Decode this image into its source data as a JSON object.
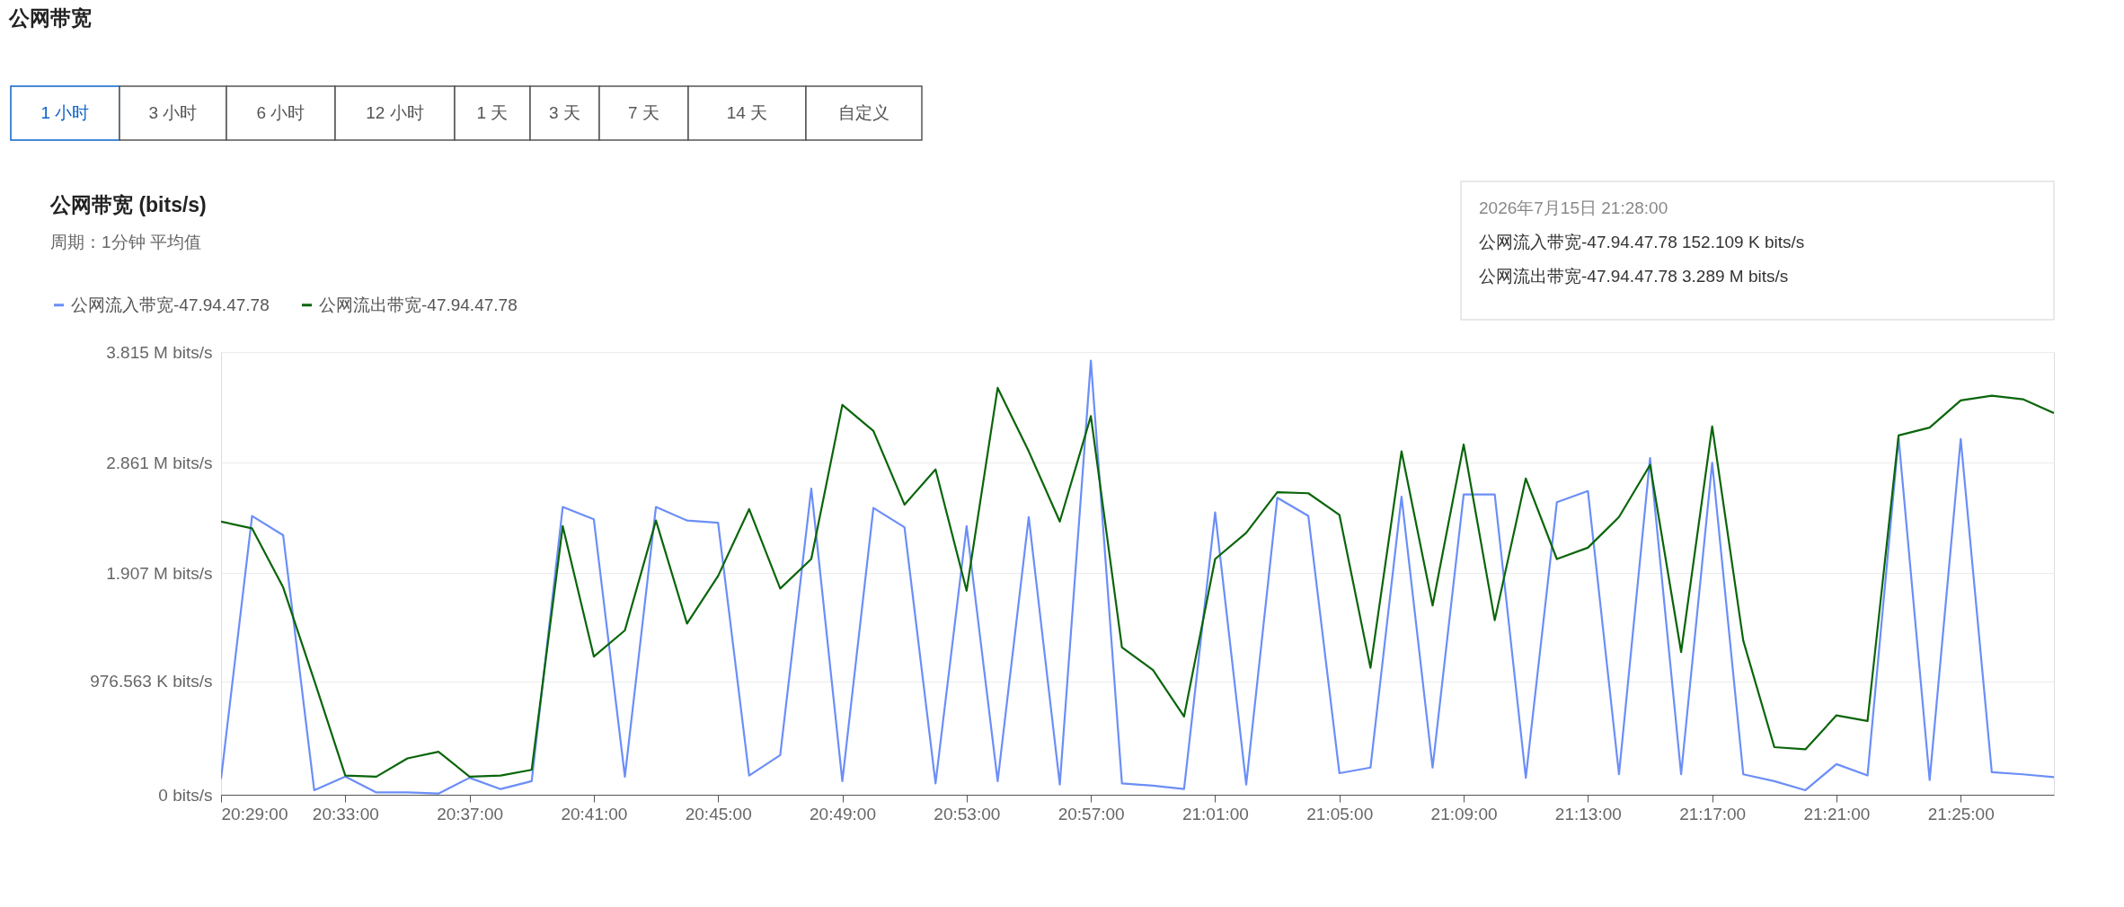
{
  "chart_data": {
    "type": "line",
    "title": "公网带宽 (bits/s)",
    "subtitle": "周期：1分钟  平均值",
    "annotations": [
      "公网带宽",
      "1 小时",
      "3 小时",
      "6 小时",
      "12 小时",
      "1 天",
      "3 天",
      "7 天",
      "14 天",
      "自定义",
      "2026年7月15日 21:28:00",
      "公网流入带宽-47.94.47.78  152.109 K bits/s",
      "公网流出带宽-47.94.47.78  3.289 M bits/s"
    ],
    "x": [
      "2026-07-15T20:29",
      "2026-07-15T20:30",
      "2026-07-15T20:31",
      "2026-07-15T20:32",
      "2026-07-15T20:33",
      "2026-07-15T20:34",
      "2026-07-15T20:35",
      "2026-07-15T20:36",
      "2026-07-15T20:37",
      "2026-07-15T20:38",
      "2026-07-15T20:39",
      "2026-07-15T20:40",
      "2026-07-15T20:41",
      "2026-07-15T20:42",
      "2026-07-15T20:43",
      "2026-07-15T20:44",
      "2026-07-15T20:45",
      "2026-07-15T20:46",
      "2026-07-15T20:47",
      "2026-07-15T20:48",
      "2026-07-15T20:49",
      "2026-07-15T20:50",
      "2026-07-15T20:51",
      "2026-07-15T20:52",
      "2026-07-15T20:53",
      "2026-07-15T20:54",
      "2026-07-15T20:55",
      "2026-07-15T20:56",
      "2026-07-15T20:57",
      "2026-07-15T20:58",
      "2026-07-15T20:59",
      "2026-07-15T21:00",
      "2026-07-15T21:01",
      "2026-07-15T21:02",
      "2026-07-15T21:03",
      "2026-07-15T21:04",
      "2026-07-15T21:05",
      "2026-07-15T21:06",
      "2026-07-15T21:07",
      "2026-07-15T21:08",
      "2026-07-15T21:09",
      "2026-07-15T21:10",
      "2026-07-15T21:11",
      "2026-07-15T21:12",
      "2026-07-15T21:13",
      "2026-07-15T21:14",
      "2026-07-15T21:15",
      "2026-07-15T21:16",
      "2026-07-15T21:17",
      "2026-07-15T21:18",
      "2026-07-15T21:19",
      "2026-07-15T21:20",
      "2026-07-15T21:21",
      "2026-07-15T21:22",
      "2026-07-15T21:23",
      "2026-07-15T21:24",
      "2026-07-15T21:25",
      "2026-07-15T21:26",
      "2026-07-15T21:27",
      "2026-07-15T21:28"
    ],
    "series": [
      {
        "name": "公网流入带宽-47.94.47.78",
        "color": "#6b8ef7",
        "values": [
          137000,
          2402000,
          2236000,
          39000,
          156000,
          20000,
          20000,
          10000,
          146000,
          49000,
          117000,
          2480000,
          2373000,
          156000,
          2480000,
          2363000,
          2344000,
          166000,
          342000,
          2637000,
          117000,
          2471000,
          2305000,
          98000,
          2314000,
          117000,
          2393000,
          88000,
          3740000,
          98000,
          78000,
          49000,
          2432000,
          88000,
          2559000,
          2402000,
          186000,
          234000,
          2568000,
          234000,
          2588000,
          2588000,
          146000,
          2520000,
          2617000,
          176000,
          2900000,
          176000,
          2861000,
          176000,
          117000,
          39000,
          264000,
          166000,
          3076000,
          127000,
          3066000,
          195000,
          176000,
          152000
        ]
      },
      {
        "name": "公网流出带宽-47.94.47.78",
        "color": "#0a650a",
        "values": [
          2354000,
          2295000,
          1787000,
          986000,
          166000,
          156000,
          313000,
          371000,
          156000,
          166000,
          215000,
          2314000,
          1191000,
          1416000,
          2363000,
          1475000,
          1885000,
          2461000,
          1777000,
          2031000,
          3359000,
          3135000,
          2500000,
          2803000,
          1758000,
          3506000,
          2959000,
          2354000,
          3262000,
          1270000,
          1074000,
          674000,
          2031000,
          2256000,
          2607000,
          2598000,
          2412000,
          1094000,
          2959000,
          1631000,
          3018000,
          1504000,
          2725000,
          2031000,
          2129000,
          2393000,
          2842000,
          1230000,
          3174000,
          1328000,
          410000,
          391000,
          684000,
          635000,
          3096000,
          3164000,
          3398000,
          3438000,
          3408000,
          3289000
        ]
      }
    ],
    "xlim": [
      "2026-07-15T20:29",
      "2026-07-15T21:28"
    ],
    "xticks": [
      {
        "value": "2026-07-15T20:29",
        "label": "20:29:00"
      },
      {
        "value": "2026-07-15T20:33",
        "label": "20:33:00"
      },
      {
        "value": "2026-07-15T20:37",
        "label": "20:37:00"
      },
      {
        "value": "2026-07-15T20:41",
        "label": "20:41:00"
      },
      {
        "value": "2026-07-15T20:45",
        "label": "20:45:00"
      },
      {
        "value": "2026-07-15T20:49",
        "label": "20:49:00"
      },
      {
        "value": "2026-07-15T20:53",
        "label": "20:53:00"
      },
      {
        "value": "2026-07-15T20:57",
        "label": "20:57:00"
      },
      {
        "value": "2026-07-15T21:01",
        "label": "21:01:00"
      },
      {
        "value": "2026-07-15T21:05",
        "label": "21:05:00"
      },
      {
        "value": "2026-07-15T21:09",
        "label": "21:09:00"
      },
      {
        "value": "2026-07-15T21:13",
        "label": "21:13:00"
      },
      {
        "value": "2026-07-15T21:17",
        "label": "21:17:00"
      },
      {
        "value": "2026-07-15T21:21",
        "label": "21:21:00"
      },
      {
        "value": "2026-07-15T21:25",
        "label": "21:25:00"
      }
    ],
    "ylim": [
      0,
      3814697
    ],
    "yticks": [
      {
        "value": 0,
        "label": "0  bits/s"
      },
      {
        "value": 976563,
        "label": "976.563 K bits/s"
      },
      {
        "value": 1907349,
        "label": "1.907 M bits/s"
      },
      {
        "value": 2861023,
        "label": "2.861 M bits/s"
      },
      {
        "value": 3814697,
        "label": "3.815 M bits/s"
      }
    ],
    "grid": "y",
    "legend": "top left",
    "line_style": "solid",
    "marker": "none"
  }
}
